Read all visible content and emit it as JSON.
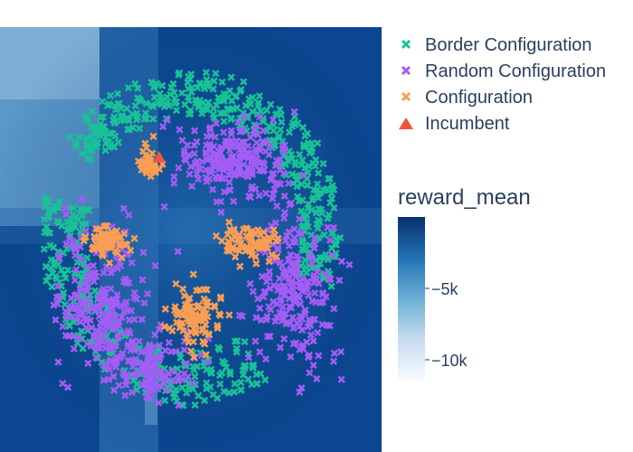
{
  "chart_data": {
    "type": "scatter",
    "title": "",
    "xlabel": "",
    "ylabel": "",
    "colors": {
      "border": "#19c196",
      "random": "#a35cf5",
      "configuration": "#f99e53",
      "incumbent": "#ef553b"
    },
    "legend": {
      "placement": "top-right",
      "items": [
        {
          "name": "Border Configuration",
          "marker": "x",
          "color": "#19c196"
        },
        {
          "name": "Random Configuration",
          "marker": "x",
          "color": "#a35cf5"
        },
        {
          "name": "Configuration",
          "marker": "x",
          "color": "#f99e53"
        },
        {
          "name": "Incumbent",
          "marker": "triangle-up",
          "color": "#ef553b"
        }
      ]
    },
    "colorbar": {
      "title": "reward_mean",
      "ticks": [
        "−5k",
        "−10k"
      ],
      "tick_values": [
        -5000,
        -10000
      ],
      "range": [
        -12500,
        -2300
      ],
      "colorscale": [
        "#f7fbff",
        "#c6dbef",
        "#6baed6",
        "#2171b5",
        "#08306b"
      ]
    },
    "series": [
      {
        "name": "Border Configuration",
        "clusters": [
          {
            "arc_center_deg": 90,
            "arc_span_deg": 110,
            "r_min": 0.72,
            "r_max": 0.98,
            "count": 260
          },
          {
            "arc_center_deg": 10,
            "arc_span_deg": 55,
            "r_min": 0.7,
            "r_max": 0.95,
            "count": 130
          },
          {
            "arc_center_deg": 200,
            "arc_span_deg": 70,
            "r_min": 0.65,
            "r_max": 0.95,
            "count": 170
          },
          {
            "arc_center_deg": 270,
            "arc_span_deg": 60,
            "r_min": 0.65,
            "r_max": 0.97,
            "count": 120
          }
        ]
      },
      {
        "name": "Random Configuration",
        "clusters": [
          {
            "center": [
              0.25,
              0.45
            ],
            "spread": [
              0.35,
              0.22
            ],
            "count": 230
          },
          {
            "center": [
              0.65,
              -0.3
            ],
            "spread": [
              0.28,
              0.45
            ],
            "count": 210
          },
          {
            "center": [
              -0.55,
              -0.38
            ],
            "spread": [
              0.3,
              0.42
            ],
            "count": 230
          },
          {
            "center": [
              -0.25,
              -0.75
            ],
            "spread": [
              0.32,
              0.2
            ],
            "count": 110
          }
        ]
      },
      {
        "name": "Configuration",
        "clusters": [
          {
            "center": [
              -0.27,
              0.45
            ],
            "spread": [
              0.08,
              0.1
            ],
            "count": 45
          },
          {
            "center": [
              -0.52,
              -0.01
            ],
            "spread": [
              0.12,
              0.09
            ],
            "count": 75
          },
          {
            "center": [
              0.38,
              -0.02
            ],
            "spread": [
              0.18,
              0.11
            ],
            "count": 75
          },
          {
            "center": [
              0.03,
              -0.45
            ],
            "spread": [
              0.17,
              0.18
            ],
            "count": 95
          }
        ]
      },
      {
        "name": "Incumbent",
        "points": [
          {
            "x": -0.2,
            "y": 0.48
          }
        ]
      }
    ]
  }
}
